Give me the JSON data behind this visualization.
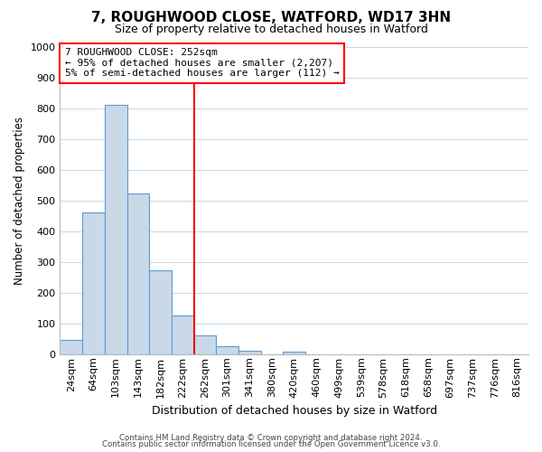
{
  "title": "7, ROUGHWOOD CLOSE, WATFORD, WD17 3HN",
  "subtitle": "Size of property relative to detached houses in Watford",
  "xlabel": "Distribution of detached houses by size in Watford",
  "ylabel": "Number of detached properties",
  "bar_labels": [
    "24sqm",
    "64sqm",
    "103sqm",
    "143sqm",
    "182sqm",
    "222sqm",
    "262sqm",
    "301sqm",
    "341sqm",
    "380sqm",
    "420sqm",
    "460sqm",
    "499sqm",
    "539sqm",
    "578sqm",
    "618sqm",
    "658sqm",
    "697sqm",
    "737sqm",
    "776sqm",
    "816sqm"
  ],
  "bar_heights": [
    47,
    460,
    810,
    522,
    273,
    125,
    60,
    25,
    12,
    0,
    8,
    0,
    0,
    0,
    0,
    0,
    0,
    0,
    0,
    0,
    0
  ],
  "bar_color": "#c9d9e8",
  "bar_edge_color": "#5b9bd5",
  "marker_line_index": 6,
  "marker_line_color": "red",
  "annotation_line1": "7 ROUGHWOOD CLOSE: 252sqm",
  "annotation_line2": "← 95% of detached houses are smaller (2,207)",
  "annotation_line3": "5% of semi-detached houses are larger (112) →",
  "annotation_box_color": "white",
  "annotation_box_edge": "red",
  "ylim": [
    0,
    1000
  ],
  "yticks": [
    0,
    100,
    200,
    300,
    400,
    500,
    600,
    700,
    800,
    900,
    1000
  ],
  "footer1": "Contains HM Land Registry data © Crown copyright and database right 2024.",
  "footer2": "Contains public sector information licensed under the Open Government Licence v3.0.",
  "bg_color": "#ffffff",
  "grid_color": "#c8d8e8",
  "title_fontsize": 11,
  "subtitle_fontsize": 9,
  "xlabel_fontsize": 9,
  "ylabel_fontsize": 8.5,
  "tick_fontsize": 8,
  "annot_fontsize": 8
}
